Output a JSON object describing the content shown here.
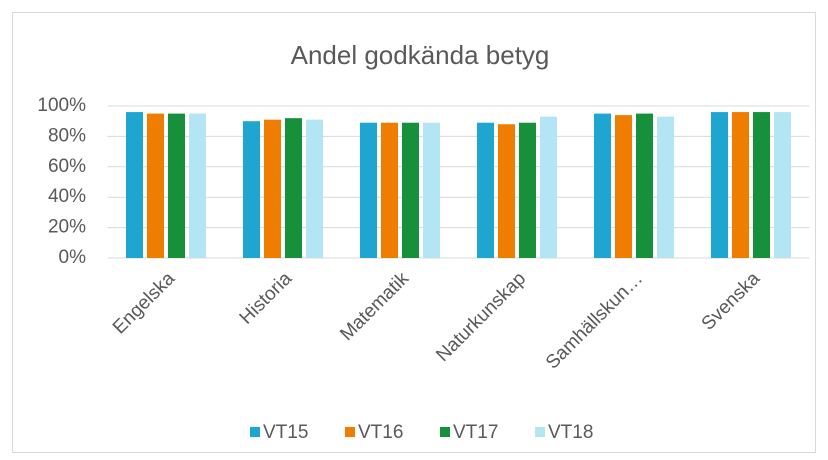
{
  "chart_data": {
    "type": "bar",
    "title": "Andel godkända betyg",
    "categories": [
      "Engelska",
      "Historia",
      "Matematik",
      "Naturkunskap",
      "Samhällskun…",
      "Svenska"
    ],
    "series": [
      {
        "name": "VT15",
        "color": "#1fa6d0",
        "values": [
          96,
          90,
          89,
          89,
          95,
          96
        ]
      },
      {
        "name": "VT16",
        "color": "#ee7d00",
        "values": [
          95,
          91,
          89,
          88,
          94,
          96
        ]
      },
      {
        "name": "VT17",
        "color": "#16903a",
        "values": [
          95,
          92,
          89,
          89,
          95,
          96
        ]
      },
      {
        "name": "VT18",
        "color": "#b3e5f5",
        "values": [
          95,
          91,
          89,
          93,
          93,
          96
        ]
      }
    ],
    "ylim": [
      0,
      100
    ],
    "yticks": [
      {
        "value": 0,
        "label": "0%"
      },
      {
        "value": 20,
        "label": "20%"
      },
      {
        "value": 40,
        "label": "40%"
      },
      {
        "value": 60,
        "label": "60%"
      },
      {
        "value": 80,
        "label": "80%"
      },
      {
        "value": 100,
        "label": "100%"
      }
    ],
    "grid": true,
    "legend": "bottom"
  }
}
